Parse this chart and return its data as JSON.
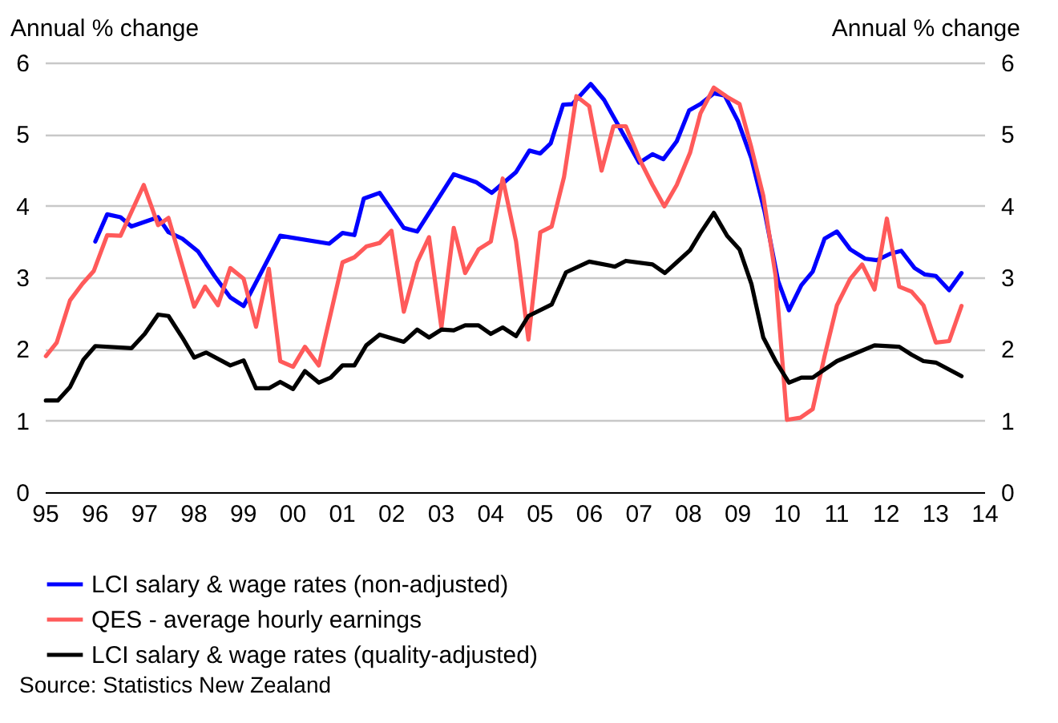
{
  "chart_data": {
    "type": "line",
    "ylabel": "Annual % change",
    "y2label": "Annual % change",
    "annotations": [
      "Source: Statistics New Zealand"
    ],
    "xlim": [
      1995,
      2014
    ],
    "xticks": [
      {
        "value": 1995,
        "label": "95"
      },
      {
        "value": 1996,
        "label": "96"
      },
      {
        "value": 1997,
        "label": "97"
      },
      {
        "value": 1998,
        "label": "98"
      },
      {
        "value": 1999,
        "label": "99"
      },
      {
        "value": 2000,
        "label": "00"
      },
      {
        "value": 2001,
        "label": "01"
      },
      {
        "value": 2002,
        "label": "02"
      },
      {
        "value": 2003,
        "label": "03"
      },
      {
        "value": 2004,
        "label": "04"
      },
      {
        "value": 2005,
        "label": "05"
      },
      {
        "value": 2006,
        "label": "06"
      },
      {
        "value": 2007,
        "label": "07"
      },
      {
        "value": 2008,
        "label": "08"
      },
      {
        "value": 2009,
        "label": "09"
      },
      {
        "value": 2010,
        "label": "10"
      },
      {
        "value": 2011,
        "label": "11"
      },
      {
        "value": 2012,
        "label": "12"
      },
      {
        "value": 2013,
        "label": "13"
      },
      {
        "value": 2014,
        "label": "14"
      }
    ],
    "ylim": [
      0,
      6
    ],
    "yticks": [
      0,
      1,
      2,
      3,
      4,
      5,
      6
    ],
    "y2lim": [
      0,
      6
    ],
    "y2ticks": [
      0,
      1,
      2,
      3,
      4,
      5,
      6
    ],
    "grid": "y",
    "legend": "bottom",
    "marker": "none",
    "line_style": "solid",
    "series": [
      {
        "name": "LCI salary & wage rates (non-adjusted)",
        "color": "#0000ff",
        "x": [
          1996.02,
          1996.26,
          1996.53,
          1996.75,
          1997.29,
          1997.5,
          1997.78,
          1998.1,
          1998.43,
          1998.75,
          1999.02,
          1999.4,
          1999.76,
          2000.75,
          2001.02,
          2001.26,
          2001.45,
          2001.77,
          2002.26,
          2002.53,
          2003.27,
          2003.72,
          2004.04,
          2004.53,
          2004.8,
          2005.02,
          2005.23,
          2005.48,
          2005.67,
          2006.04,
          2006.31,
          2006.64,
          2007.02,
          2007.29,
          2007.51,
          2007.78,
          2008.03,
          2008.26,
          2008.53,
          2008.75,
          2009.02,
          2009.29,
          2009.56,
          2009.83,
          2010.05,
          2010.3,
          2010.53,
          2010.77,
          2011.02,
          2011.29,
          2011.59,
          2011.83,
          2012.1,
          2012.32,
          2012.59,
          2012.8,
          2013.02,
          2013.29,
          2013.54
        ],
        "values": [
          3.5,
          3.88,
          3.84,
          3.71,
          3.84,
          3.63,
          3.54,
          3.36,
          3.02,
          2.72,
          2.6,
          3.1,
          3.58,
          3.47,
          3.62,
          3.59,
          4.1,
          4.18,
          3.69,
          3.64,
          4.44,
          4.33,
          4.18,
          4.47,
          4.77,
          4.73,
          4.87,
          5.41,
          5.42,
          5.7,
          5.48,
          5.07,
          4.6,
          4.72,
          4.65,
          4.9,
          5.33,
          5.42,
          5.57,
          5.54,
          5.18,
          4.66,
          3.91,
          2.95,
          2.54,
          2.89,
          3.08,
          3.54,
          3.64,
          3.39,
          3.26,
          3.24,
          3.33,
          3.37,
          3.13,
          3.04,
          3.02,
          2.82,
          3.06
        ]
      },
      {
        "name": "QES - average hourly earnings",
        "color": "#ff5a5a",
        "x": [
          1995.02,
          1995.24,
          1995.51,
          1995.76,
          1995.99,
          1996.26,
          1996.53,
          1997.0,
          1997.29,
          1997.5,
          1998.02,
          1998.24,
          1998.5,
          1998.75,
          1999.02,
          1999.27,
          1999.53,
          1999.76,
          2000.02,
          2000.26,
          2000.54,
          2001.02,
          2001.26,
          2001.5,
          2001.77,
          2002.01,
          2002.26,
          2002.53,
          2002.77,
          2003.02,
          2003.27,
          2003.5,
          2003.77,
          2004.02,
          2004.26,
          2004.53,
          2004.78,
          2005.02,
          2005.25,
          2005.5,
          2005.75,
          2006.01,
          2006.26,
          2006.5,
          2006.75,
          2007.02,
          2007.29,
          2007.53,
          2007.78,
          2008.05,
          2008.26,
          2008.53,
          2008.8,
          2009.05,
          2009.29,
          2009.53,
          2009.78,
          2010.01,
          2010.28,
          2010.53,
          2010.77,
          2011.02,
          2011.29,
          2011.53,
          2011.78,
          2012.03,
          2012.28,
          2012.53,
          2012.77,
          2013.02,
          2013.29,
          2013.54
        ],
        "values": [
          1.9,
          2.09,
          2.68,
          2.91,
          3.09,
          3.59,
          3.58,
          4.29,
          3.73,
          3.83,
          2.59,
          2.87,
          2.61,
          3.13,
          2.98,
          2.31,
          3.12,
          1.83,
          1.75,
          2.03,
          1.77,
          3.21,
          3.28,
          3.43,
          3.48,
          3.65,
          2.52,
          3.21,
          3.56,
          2.3,
          3.69,
          3.06,
          3.39,
          3.5,
          4.38,
          3.5,
          2.13,
          3.63,
          3.71,
          4.4,
          5.53,
          5.39,
          4.49,
          5.11,
          5.11,
          4.66,
          4.29,
          3.99,
          4.29,
          4.74,
          5.29,
          5.65,
          5.52,
          5.42,
          4.81,
          4.14,
          3.02,
          1.01,
          1.04,
          1.16,
          1.9,
          2.61,
          2.98,
          3.18,
          2.83,
          3.82,
          2.87,
          2.8,
          2.61,
          2.09,
          2.11,
          2.6
        ]
      },
      {
        "name": "LCI salary & wage rates (quality-adjusted)",
        "color": "#000000",
        "x": [
          1995.02,
          1995.26,
          1995.51,
          1995.78,
          1996.02,
          1996.75,
          1997.02,
          1997.29,
          1997.5,
          1997.78,
          1998.02,
          1998.26,
          1998.75,
          1999.02,
          1999.27,
          1999.53,
          1999.76,
          2000.02,
          2000.26,
          2000.54,
          2000.78,
          2001.02,
          2001.26,
          2001.5,
          2001.77,
          2002.26,
          2002.53,
          2002.77,
          2003.02,
          2003.27,
          2003.5,
          2003.77,
          2004.02,
          2004.26,
          2004.53,
          2004.78,
          2005.25,
          2005.54,
          2006.01,
          2006.53,
          2006.75,
          2007.29,
          2007.54,
          2007.78,
          2008.05,
          2008.26,
          2008.53,
          2008.8,
          2009.05,
          2009.29,
          2009.53,
          2009.78,
          2010.05,
          2010.3,
          2010.53,
          2011.02,
          2011.78,
          2012.28,
          2012.53,
          2012.77,
          2013.02,
          2013.54
        ],
        "values": [
          1.28,
          1.28,
          1.47,
          1.85,
          2.04,
          2.01,
          2.21,
          2.48,
          2.46,
          2.16,
          1.88,
          1.95,
          1.77,
          1.84,
          1.45,
          1.45,
          1.54,
          1.44,
          1.69,
          1.53,
          1.6,
          1.77,
          1.77,
          2.05,
          2.2,
          2.1,
          2.27,
          2.16,
          2.27,
          2.26,
          2.33,
          2.33,
          2.21,
          2.3,
          2.18,
          2.46,
          2.62,
          3.07,
          3.22,
          3.15,
          3.23,
          3.18,
          3.06,
          3.21,
          3.38,
          3.62,
          3.9,
          3.58,
          3.39,
          2.91,
          2.16,
          1.83,
          1.53,
          1.6,
          1.6,
          1.83,
          2.05,
          2.03,
          1.92,
          1.83,
          1.81,
          1.62
        ]
      }
    ]
  }
}
